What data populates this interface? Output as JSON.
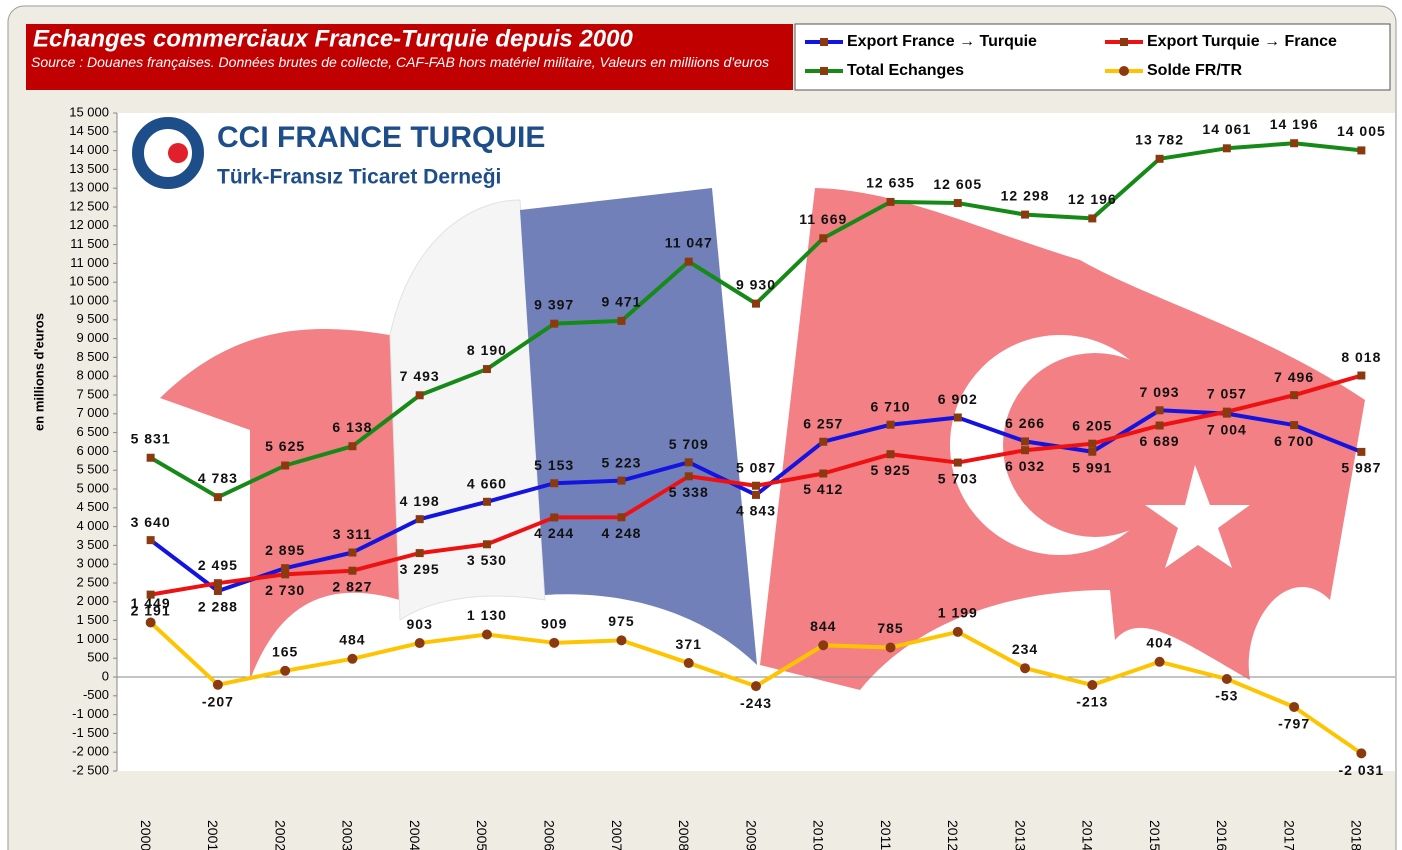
{
  "chart_data": {
    "type": "line",
    "title": "Echanges commerciaux France-Turquie depuis 2000",
    "subtitle": "Source : Douanes françaises. Données brutes de collecte, CAF-FAB hors matériel militaire, Valeurs en milliions d'euros",
    "y_label": "en millions d'euros",
    "logo": {
      "name": "CCI FRANCE TURQUIE",
      "tagline": "Türk-Fransız Ticaret Derneği"
    },
    "categories": [
      "2000",
      "2001",
      "2002",
      "2003",
      "2004",
      "2005",
      "2006",
      "2007",
      "2008",
      "2009",
      "2010",
      "2011",
      "2012",
      "2013",
      "2014",
      "2015",
      "2016",
      "2017",
      "2018"
    ],
    "series": [
      {
        "name": "Export France → Turquie",
        "color": "#1414e0",
        "marker": "square",
        "marker_color": "#8b3a10",
        "values": [
          3640,
          2288,
          2895,
          3311,
          4198,
          4660,
          5153,
          5223,
          5709,
          4843,
          6257,
          6710,
          6902,
          6266,
          5991,
          7093,
          7004,
          6700,
          5987
        ],
        "value_labels": [
          "3 640",
          "2 288",
          "2 895",
          "3 311",
          "4 198",
          "4 660",
          "5 153",
          "5 223",
          "5 709",
          "4 843",
          "6 257",
          "6 710",
          "6 902",
          "6 266",
          "5 991",
          "7 093",
          "7 004",
          "6 700",
          "5 987"
        ]
      },
      {
        "name": "Export Turquie → France",
        "color": "#ee1111",
        "marker": "square",
        "marker_color": "#8b3a10",
        "values": [
          2191,
          2495,
          2730,
          2827,
          3295,
          3530,
          4244,
          4248,
          5338,
          5087,
          5412,
          5925,
          5703,
          6032,
          6205,
          6689,
          7057,
          7496,
          8018
        ],
        "value_labels": [
          "2 191",
          "2 495",
          "2 730",
          "2 827",
          "3 295",
          "3 530",
          "4 244",
          "4 248",
          "5 338",
          "5 087",
          "5 412",
          "5 925",
          "5 703",
          "6 032",
          "6 205",
          "6 689",
          "7 057",
          "7 496",
          "8 018"
        ]
      },
      {
        "name": "Total Echanges",
        "color": "#168a16",
        "marker": "square",
        "marker_color": "#8b3a10",
        "values": [
          5831,
          4783,
          5625,
          6138,
          7493,
          8190,
          9397,
          9471,
          11047,
          9930,
          11669,
          12635,
          12605,
          12298,
          12196,
          13782,
          14061,
          14196,
          14005
        ],
        "value_labels": [
          "5 831",
          "4 783",
          "5 625",
          "6 138",
          "7 493",
          "8 190",
          "9 397",
          "9 471",
          "11 047",
          "9 930",
          "11 669",
          "12 635",
          "12 605",
          "12 298",
          "12 196",
          "13 782",
          "14 061",
          "14 196",
          "14 005"
        ]
      },
      {
        "name": "Solde FR/TR",
        "color": "#ffc400",
        "marker": "circle",
        "marker_color": "#8b3a10",
        "values": [
          1449,
          -207,
          165,
          484,
          903,
          1130,
          909,
          975,
          371,
          -243,
          844,
          785,
          1199,
          234,
          -213,
          404,
          -53,
          -797,
          -2031
        ],
        "value_labels": [
          "1 449",
          "-207",
          "165",
          "484",
          "903",
          "1 130",
          "909",
          "975",
          "371",
          "-243",
          "844",
          "785",
          "1 199",
          "234",
          "-213",
          "404",
          "-53",
          "-797",
          "-2 031"
        ]
      }
    ],
    "ylim": [
      -2500,
      15000
    ],
    "yticks": [
      {
        "value": -2500,
        "label": "-2 500"
      },
      {
        "value": -2000,
        "label": "-2 000"
      },
      {
        "value": -1500,
        "label": "-1 500"
      },
      {
        "value": -1000,
        "label": "-1 000"
      },
      -500,
      0,
      500,
      {
        "value": 1000,
        "label": "1 000"
      },
      {
        "value": 1500,
        "label": "1 500"
      },
      {
        "value": 2000,
        "label": "2 000"
      },
      {
        "value": 2500,
        "label": "2 500"
      },
      {
        "value": 3000,
        "label": "3 000"
      },
      {
        "value": 3500,
        "label": "3 500"
      },
      {
        "value": 4000,
        "label": "4 000"
      },
      {
        "value": 4500,
        "label": "4 500"
      },
      {
        "value": 5000,
        "label": "5 000"
      },
      {
        "value": 5500,
        "label": "5 500"
      },
      {
        "value": 6000,
        "label": "6 000"
      },
      {
        "value": 6500,
        "label": "6 500"
      },
      {
        "value": 7000,
        "label": "7 000"
      },
      {
        "value": 7500,
        "label": "7 500"
      },
      {
        "value": 8000,
        "label": "8 000"
      },
      {
        "value": 8500,
        "label": "8 500"
      },
      {
        "value": 9000,
        "label": "9 000"
      },
      {
        "value": 9500,
        "label": "9 500"
      },
      {
        "value": 10000,
        "label": "10 000"
      },
      {
        "value": 10500,
        "label": "10 500"
      },
      {
        "value": 11000,
        "label": "11 000"
      },
      {
        "value": 11500,
        "label": "11 500"
      },
      {
        "value": 12000,
        "label": "12 000"
      },
      {
        "value": 12500,
        "label": "12 500"
      },
      {
        "value": 13000,
        "label": "13 000"
      },
      {
        "value": 13500,
        "label": "13 500"
      },
      {
        "value": 14000,
        "label": "14 000"
      },
      {
        "value": 14500,
        "label": "14 500"
      },
      {
        "value": 15000,
        "label": "15 000"
      }
    ]
  }
}
